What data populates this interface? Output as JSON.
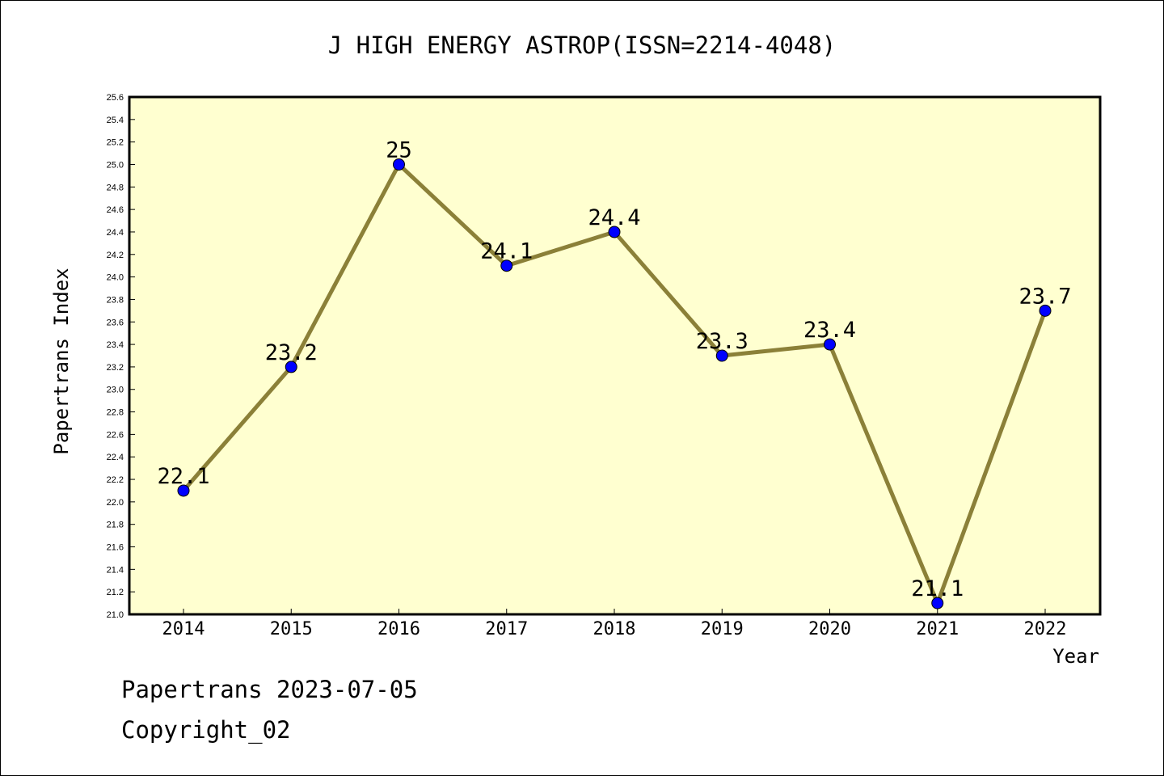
{
  "chart_data": {
    "type": "line",
    "title": "J HIGH ENERGY ASTROP(ISSN=2214-4048)",
    "xlabel": "Year",
    "ylabel": "Papertrans Index",
    "categories": [
      "2014",
      "2015",
      "2016",
      "2017",
      "2018",
      "2019",
      "2020",
      "2021",
      "2022"
    ],
    "series": [
      {
        "values": [
          22.1,
          23.2,
          25.0,
          24.1,
          24.4,
          23.3,
          23.4,
          21.1,
          23.7
        ],
        "data_labels": [
          "22.1",
          "23.2",
          "25",
          "24.1",
          "24.4",
          "23.3",
          "23.4",
          "21.1",
          "23.7"
        ]
      }
    ],
    "ylim": [
      21.0,
      25.6
    ],
    "y_ticks": [
      "21.0",
      "21.2",
      "21.4",
      "21.6",
      "21.8",
      "22.0",
      "22.2",
      "22.4",
      "22.6",
      "22.8",
      "23.0",
      "23.2",
      "23.4",
      "23.6",
      "23.8",
      "24.0",
      "24.2",
      "24.4",
      "24.6",
      "24.8",
      "25.0",
      "25.2",
      "25.4",
      "25.6"
    ],
    "grid": false,
    "legend": "none",
    "colors": {
      "plot_background": "#ffffd0",
      "line": "#8b8038",
      "marker": "#0000ff"
    }
  },
  "footer": {
    "date_text": "Papertrans 2023-07-05",
    "copyright_text": "Copyright_02"
  }
}
